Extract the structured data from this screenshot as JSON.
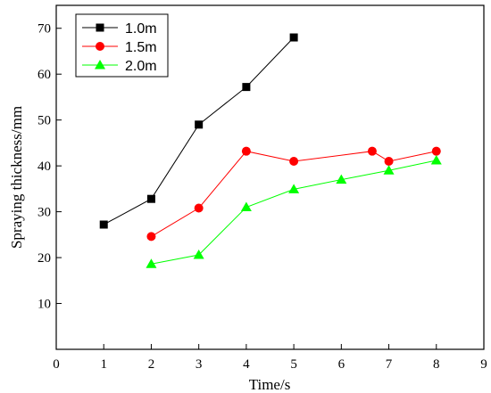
{
  "chart_data": {
    "type": "line",
    "xlabel": "Time/s",
    "ylabel": "Spraying  thickness/mm",
    "xlim": [
      0,
      9
    ],
    "ylim": [
      0,
      75
    ],
    "xticks": [
      "0",
      "1",
      "2",
      "3",
      "4",
      "5",
      "6",
      "7",
      "8",
      "9"
    ],
    "yticks": [
      "10",
      "20",
      "30",
      "40",
      "50",
      "60",
      "70"
    ],
    "grid": false,
    "legend_position": "top-left",
    "series": [
      {
        "name": "1.0m",
        "color": "#000000",
        "marker": "square",
        "points": [
          [
            1,
            27.2
          ],
          [
            2,
            32.8
          ],
          [
            3,
            49
          ],
          [
            4,
            57.2
          ],
          [
            5,
            68
          ]
        ]
      },
      {
        "name": "1.5m",
        "color": "#ff0000",
        "marker": "circle",
        "points": [
          [
            2,
            24.6
          ],
          [
            3,
            30.8
          ],
          [
            4,
            43.2
          ],
          [
            5,
            41
          ],
          [
            6.65,
            43.2
          ],
          [
            7,
            41
          ],
          [
            8,
            43.2
          ]
        ]
      },
      {
        "name": "2.0m",
        "color": "#00ff00",
        "marker": "triangle",
        "points": [
          [
            2,
            18.6
          ],
          [
            3,
            20.6
          ],
          [
            4,
            31
          ],
          [
            5,
            34.9
          ],
          [
            6,
            37
          ],
          [
            7,
            39
          ],
          [
            8,
            41.2
          ]
        ]
      }
    ]
  }
}
